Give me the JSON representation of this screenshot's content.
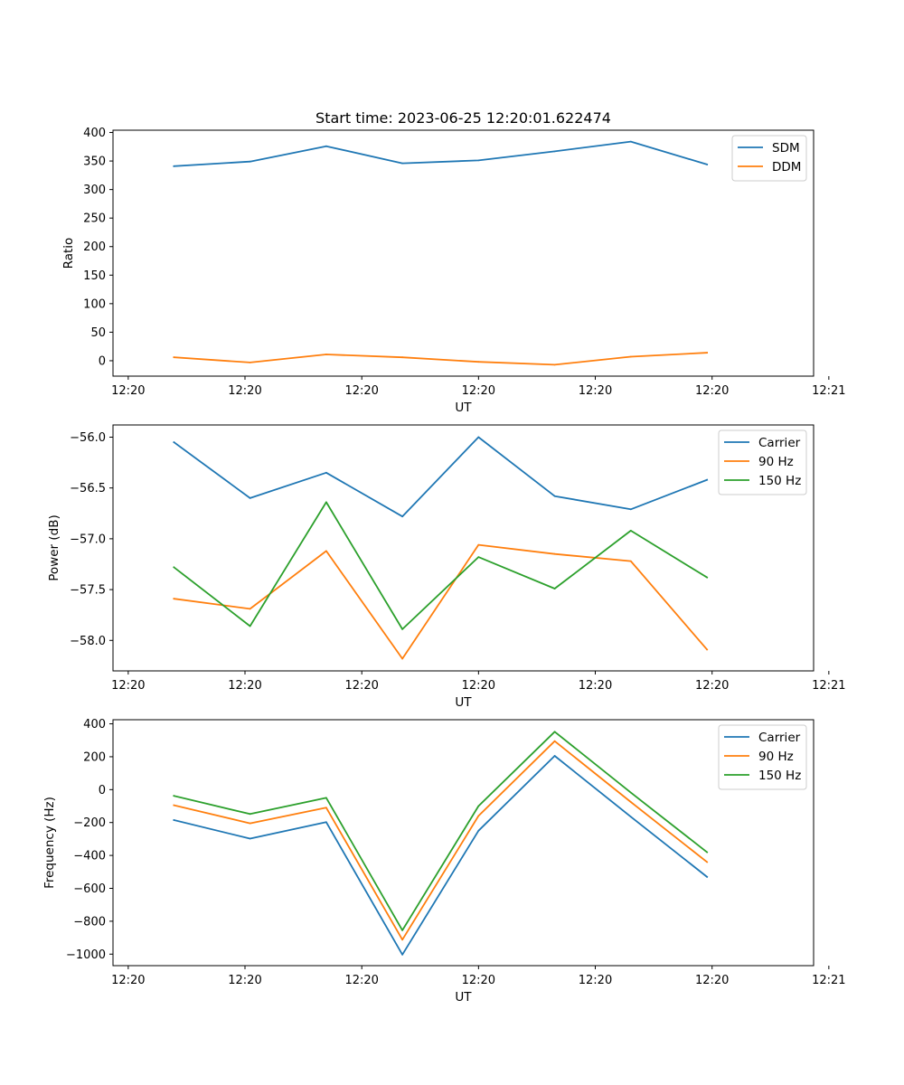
{
  "chart_data": [
    {
      "type": "line",
      "title": "Start time: 2023-06-25 12:20:01.622474",
      "xlabel": "UT",
      "ylabel": "Ratio",
      "x": [
        1,
        2,
        3,
        4,
        5,
        6,
        7,
        8
      ],
      "xlim": [
        0.2,
        9.4
      ],
      "x_ticks": [
        0.4,
        1.933,
        3.467,
        5.0,
        6.533,
        8.067,
        9.6
      ],
      "x_tick_labels": [
        "12:20",
        "12:20",
        "12:20",
        "12:20",
        "12:20",
        "12:20",
        "12:21"
      ],
      "ylim": [
        -27,
        404
      ],
      "y_ticks": [
        0,
        50,
        100,
        150,
        200,
        250,
        300,
        350,
        400
      ],
      "y_tick_labels": [
        "0",
        "50",
        "100",
        "150",
        "200",
        "250",
        "300",
        "350",
        "400"
      ],
      "legend_position": "upper right",
      "series": [
        {
          "name": "SDM",
          "color": "#1f77b4",
          "values": [
            341,
            349,
            376,
            346,
            351,
            367,
            384,
            344
          ]
        },
        {
          "name": "DDM",
          "color": "#ff7f0e",
          "values": [
            6,
            -3,
            11,
            6,
            -2,
            -7,
            7,
            14
          ]
        }
      ]
    },
    {
      "type": "line",
      "xlabel": "UT",
      "ylabel": "Power (dB)",
      "x": [
        1,
        2,
        3,
        4,
        5,
        6,
        7,
        8
      ],
      "xlim": [
        0.2,
        9.4
      ],
      "x_ticks": [
        0.4,
        1.933,
        3.467,
        5.0,
        6.533,
        8.067,
        9.6
      ],
      "x_tick_labels": [
        "12:20",
        "12:20",
        "12:20",
        "12:20",
        "12:20",
        "12:20",
        "12:21"
      ],
      "ylim": [
        -58.3,
        -55.88
      ],
      "y_ticks": [
        -56.0,
        -56.5,
        -57.0,
        -57.5,
        -58.0
      ],
      "y_tick_labels": [
        "−56.0",
        "−56.5",
        "−57.0",
        "−57.5",
        "−58.0"
      ],
      "legend_position": "upper right",
      "series": [
        {
          "name": "Carrier",
          "color": "#1f77b4",
          "values": [
            -56.05,
            -56.6,
            -56.35,
            -56.78,
            -56.0,
            -56.58,
            -56.71,
            -56.42
          ]
        },
        {
          "name": "90 Hz",
          "color": "#ff7f0e",
          "values": [
            -57.59,
            -57.69,
            -57.12,
            -58.18,
            -57.06,
            -57.15,
            -57.22,
            -58.09
          ]
        },
        {
          "name": "150 Hz",
          "color": "#2ca02c",
          "values": [
            -57.28,
            -57.86,
            -56.64,
            -57.89,
            -57.18,
            -57.49,
            -56.92,
            -57.38
          ]
        }
      ]
    },
    {
      "type": "line",
      "xlabel": "UT",
      "ylabel": "Frequency (Hz)",
      "x": [
        1,
        2,
        3,
        4,
        5,
        6,
        7,
        8
      ],
      "xlim": [
        0.2,
        9.4
      ],
      "x_ticks": [
        0.4,
        1.933,
        3.467,
        5.0,
        6.533,
        8.067,
        9.6
      ],
      "x_tick_labels": [
        "12:20",
        "12:20",
        "12:20",
        "12:20",
        "12:20",
        "12:20",
        "12:21"
      ],
      "ylim": [
        -1070,
        425
      ],
      "y_ticks": [
        400,
        200,
        0,
        -200,
        -400,
        -600,
        -800,
        -1000
      ],
      "y_tick_labels": [
        "400",
        "200",
        "0",
        "−200",
        "−400",
        "−600",
        "−800",
        "−1000"
      ],
      "legend_position": "upper right",
      "series": [
        {
          "name": "Carrier",
          "color": "#1f77b4",
          "values": [
            -185,
            -298,
            -198,
            -1003,
            -250,
            205,
            -165,
            -530
          ]
        },
        {
          "name": "90 Hz",
          "color": "#ff7f0e",
          "values": [
            -95,
            -205,
            -110,
            -912,
            -160,
            295,
            -75,
            -440
          ]
        },
        {
          "name": "150 Hz",
          "color": "#2ca02c",
          "values": [
            -38,
            -148,
            -50,
            -855,
            -100,
            352,
            -18,
            -380
          ]
        }
      ]
    }
  ]
}
